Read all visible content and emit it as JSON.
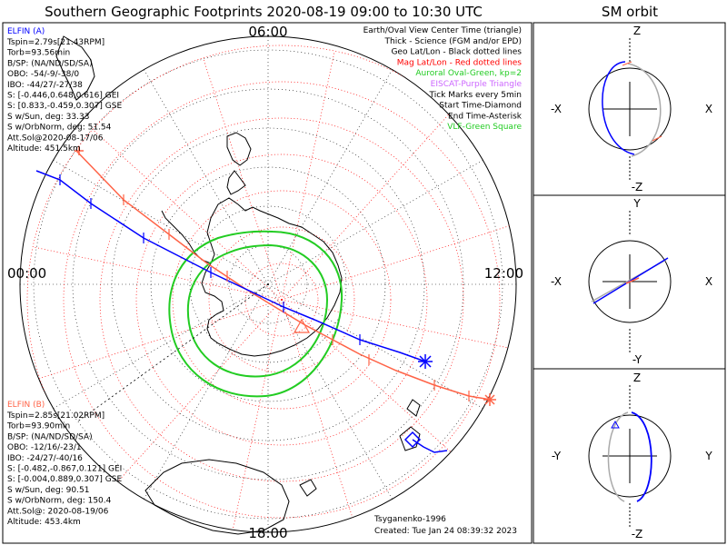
{
  "title": "Southern Geographic Footprints 2020-08-19 09:00 to 10:30 UTC",
  "orbit_title": "SM orbit",
  "clock_labels": {
    "top": "06:00",
    "left": "00:00",
    "right": "12:00",
    "bottom": "18:00"
  },
  "elfin_a": {
    "name": "ELFIN (A)",
    "color": "#0000ff",
    "lines": [
      "Tspin=2.79s[21.43RPM]",
      "Torb=93.56min",
      "B/SP: (NA/ND/SD/SA)",
      "OBO: -54/-9/-38/0",
      "IBO: -44/27/-27/38",
      "S: [-0.446,0.648,0.616] GEI",
      "S: [0.833,-0.459,0.307] GSE",
      "S w/Sun, deg: 33.33",
      "S w/OrbNorm, deg: 51.54",
      "Att.Sol@2020-08-17/06",
      "Altitude: 451.5km"
    ]
  },
  "elfin_b": {
    "name": "ELFIN (B)",
    "color": "#ff6347",
    "lines": [
      "Tspin=2.85s[21.02RPM]",
      "Torb=93.90min",
      "B/SP: (NA/ND/SD/SA)",
      "OBO: -12/16/-23/1",
      "IBO: -24/27/-40/16",
      "S: [-0.482,-0.867,0.121] GEI",
      "S: [-0.004,0.889,0.307] GSE",
      "S w/Sun, deg: 90.51",
      "S w/OrbNorm, deg: 150.4",
      "Att.Sol@: 2020-08-19/06",
      "Altitude: 453.4km"
    ]
  },
  "legend": [
    {
      "text": "Earth/Oval View Center Time (triangle)",
      "color": "#000000"
    },
    {
      "text": "Thick - Science (FGM and/or EPD)",
      "color": "#000000"
    },
    {
      "text": "Geo Lat/Lon - Black dotted lines",
      "color": "#000000"
    },
    {
      "text": "Mag Lat/Lon - Red dotted lines",
      "color": "#ff0000"
    },
    {
      "text": "Auroral Oval-Green, kp=2",
      "color": "#22cc22"
    },
    {
      "text": "EISCAT-Purple Triangle",
      "color": "#cc66ff"
    },
    {
      "text": "Tick Marks every 5min",
      "color": "#000000"
    },
    {
      "text": "Start Time-Diamond",
      "color": "#000000"
    },
    {
      "text": "End Time-Asterisk",
      "color": "#000000"
    },
    {
      "text": "VLF-Green Square",
      "color": "#22cc22"
    }
  ],
  "footer": {
    "model": "Tsyganenko-1996",
    "created": "Created: Tue Jan 24 08:39:32 2023"
  },
  "orbit_panels": [
    {
      "name": "xz-panel",
      "top": "Z",
      "bottom": "-Z",
      "left": "-X",
      "right": "X"
    },
    {
      "name": "xy-panel",
      "top": "Y",
      "bottom": "-Y",
      "left": "-X",
      "right": "X"
    },
    {
      "name": "yz-panel",
      "top": "Z",
      "bottom": "-Z",
      "left": "-Y",
      "right": "Y"
    }
  ],
  "colors": {
    "oval": "#22cc22",
    "elfin_a": "#0000ff",
    "elfin_b": "#ff6347",
    "mag_grid": "#ff0000",
    "geo_grid": "#000000",
    "coast": "#000000"
  }
}
